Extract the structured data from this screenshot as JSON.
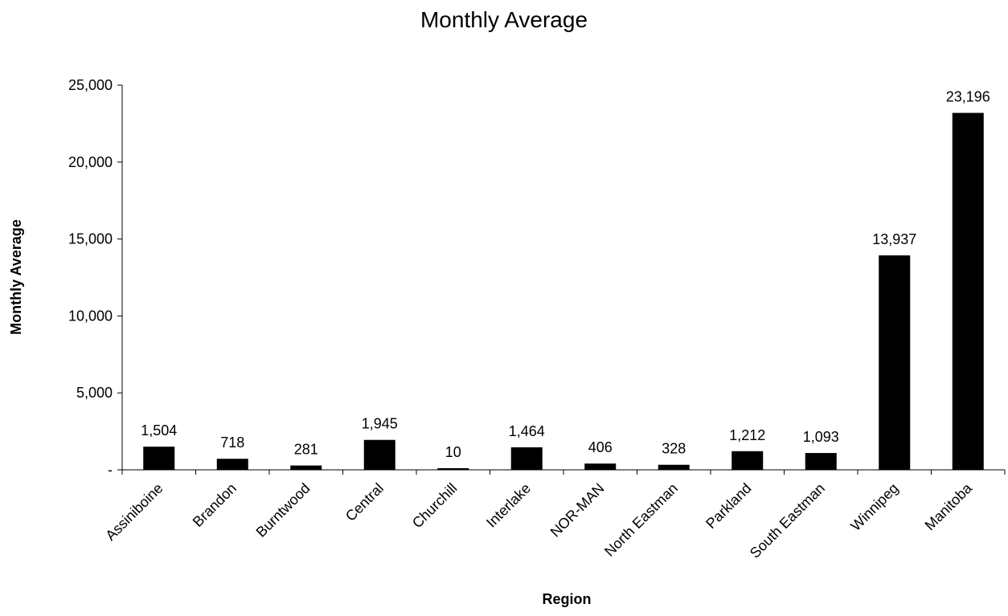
{
  "chart_data": {
    "type": "bar",
    "title": "Monthly Average",
    "xlabel": "Region",
    "ylabel": "Monthly Average",
    "categories": [
      "Assiniboine",
      "Brandon",
      "Burntwood",
      "Central",
      "Churchill",
      "Interlake",
      "NOR-MAN",
      "North Eastman",
      "Parkland",
      "South Eastman",
      "Winnipeg",
      "Manitoba"
    ],
    "values": [
      1504,
      718,
      281,
      1945,
      10,
      1464,
      406,
      328,
      1212,
      1093,
      13937,
      23196
    ],
    "data_labels": [
      "1,504",
      "718",
      "281",
      "1,945",
      "10",
      "1,464",
      "406",
      "328",
      "1,212",
      "1,093",
      "13,937",
      "23,196"
    ],
    "ylim": [
      0,
      25000
    ],
    "yticks": [
      0,
      5000,
      10000,
      15000,
      20000,
      25000
    ],
    "ytick_labels": [
      "-",
      "5,000",
      "10,000",
      "15,000",
      "20,000",
      "25,000"
    ],
    "grid": false,
    "legend": "none",
    "bar_color": "#000000"
  }
}
